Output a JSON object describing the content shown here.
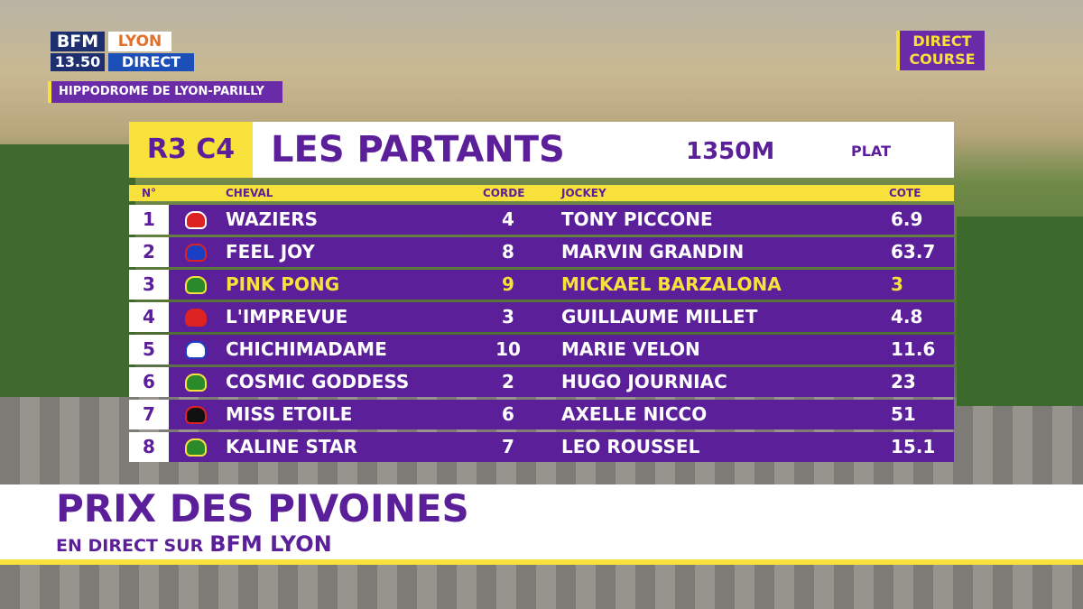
{
  "logo": {
    "brand": "BFM",
    "city": "LYON",
    "time": "13.50",
    "live": "DIRECT"
  },
  "location": "HIPPODROME DE LYON-PARILLY",
  "badge": {
    "line1": "DIRECT",
    "line2": "COURSE"
  },
  "race": {
    "code": "R3 C4",
    "title": "LES PARTANTS",
    "distance": "1350M",
    "kind": "PLAT"
  },
  "table": {
    "columns": [
      "N°",
      "CHEVAL",
      "CORDE",
      "JOCKEY",
      "COTE"
    ],
    "rows": [
      [
        "1",
        "WAZIERS",
        "4",
        "TONY PICCONE",
        "6.9"
      ],
      [
        "2",
        "FEEL JOY",
        "8",
        "MARVIN GRANDIN",
        "63.7"
      ],
      [
        "3",
        "PINK PONG",
        "9",
        "MICKAEL BARZALONA",
        "3"
      ],
      [
        "4",
        "L'IMPREVUE",
        "3",
        "GUILLAUME MILLET",
        "4.8"
      ],
      [
        "5",
        "CHICHIMADAME",
        "10",
        "MARIE VELON",
        "11.6"
      ],
      [
        "6",
        "COSMIC GODDESS",
        "2",
        "HUGO JOURNIAC",
        "23"
      ],
      [
        "7",
        "MISS ETOILE",
        "6",
        "AXELLE NICCO",
        "51"
      ],
      [
        "8",
        "KALINE STAR",
        "7",
        "LEO ROUSSEL",
        "15.1"
      ]
    ]
  },
  "banner": {
    "title": "PRIX DES PIVOINES",
    "prefix": "EN DIRECT SUR",
    "brand": "BFM LYON"
  }
}
